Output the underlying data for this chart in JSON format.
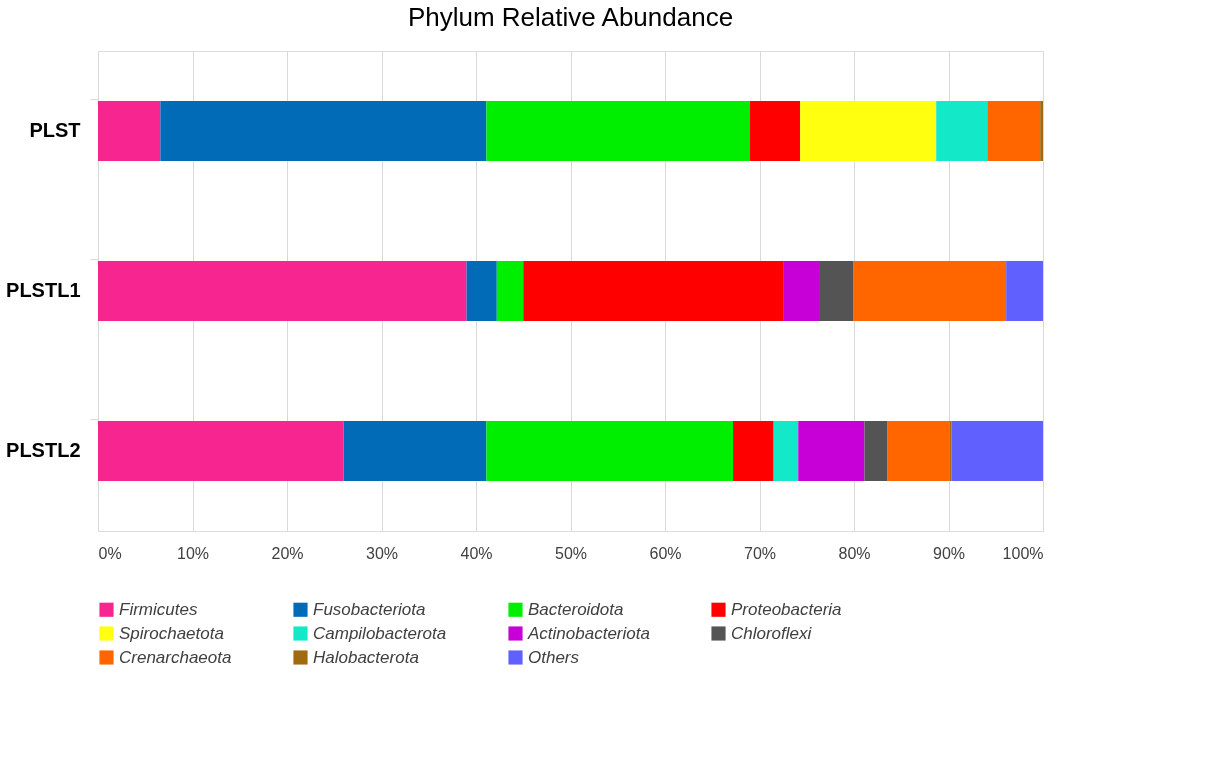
{
  "chart_data": {
    "type": "bar",
    "orientation": "horizontal",
    "stacked": true,
    "title": "Phylum Relative Abundance",
    "categories": [
      "PLST",
      "PLSTL1",
      "PLSTL2"
    ],
    "series": [
      {
        "name": "Firmicutes",
        "color": "#f72590",
        "values": [
          6.6,
          39.0,
          26.0
        ]
      },
      {
        "name": "Fusobacteriota",
        "color": "#026bb8",
        "values": [
          34.5,
          3.2,
          15.1
        ]
      },
      {
        "name": "Bacteroidota",
        "color": "#00ee00",
        "values": [
          27.9,
          2.8,
          26.1
        ]
      },
      {
        "name": "Proteobacteria",
        "color": "#fe0000",
        "values": [
          5.3,
          27.5,
          4.3
        ]
      },
      {
        "name": "Spirochaetota",
        "color": "#ffff0f",
        "values": [
          14.4,
          0,
          0
        ]
      },
      {
        "name": "Campilobacterota",
        "color": "#13e8c8",
        "values": [
          5.4,
          0,
          2.6
        ]
      },
      {
        "name": "Actinobacteriota",
        "color": "#c800d8",
        "values": [
          0,
          3.8,
          7.0
        ]
      },
      {
        "name": "Chloroflexi",
        "color": "#545454",
        "values": [
          0,
          3.6,
          2.4
        ]
      },
      {
        "name": "Crenarchaeota",
        "color": "#ff6600",
        "values": [
          5.6,
          16.2,
          6.6
        ]
      },
      {
        "name": "Halobacterota",
        "color": "#a06a10",
        "values": [
          0.3,
          0,
          0.2
        ]
      },
      {
        "name": "Others",
        "color": "#6060ff",
        "values": [
          0,
          3.9,
          9.7
        ]
      }
    ],
    "xlim": [
      0,
      100
    ],
    "xticks": [
      {
        "value": 0,
        "label": "0%"
      },
      {
        "value": 10,
        "label": "10%"
      },
      {
        "value": 20,
        "label": "20%"
      },
      {
        "value": 30,
        "label": "30%"
      },
      {
        "value": 40,
        "label": "40%"
      },
      {
        "value": 50,
        "label": "50%"
      },
      {
        "value": 60,
        "label": "60%"
      },
      {
        "value": 70,
        "label": "70%"
      },
      {
        "value": 80,
        "label": "80%"
      },
      {
        "value": 90,
        "label": "90%"
      },
      {
        "value": 100,
        "label": "100%"
      }
    ],
    "grid": "x",
    "legend": "bottom"
  }
}
